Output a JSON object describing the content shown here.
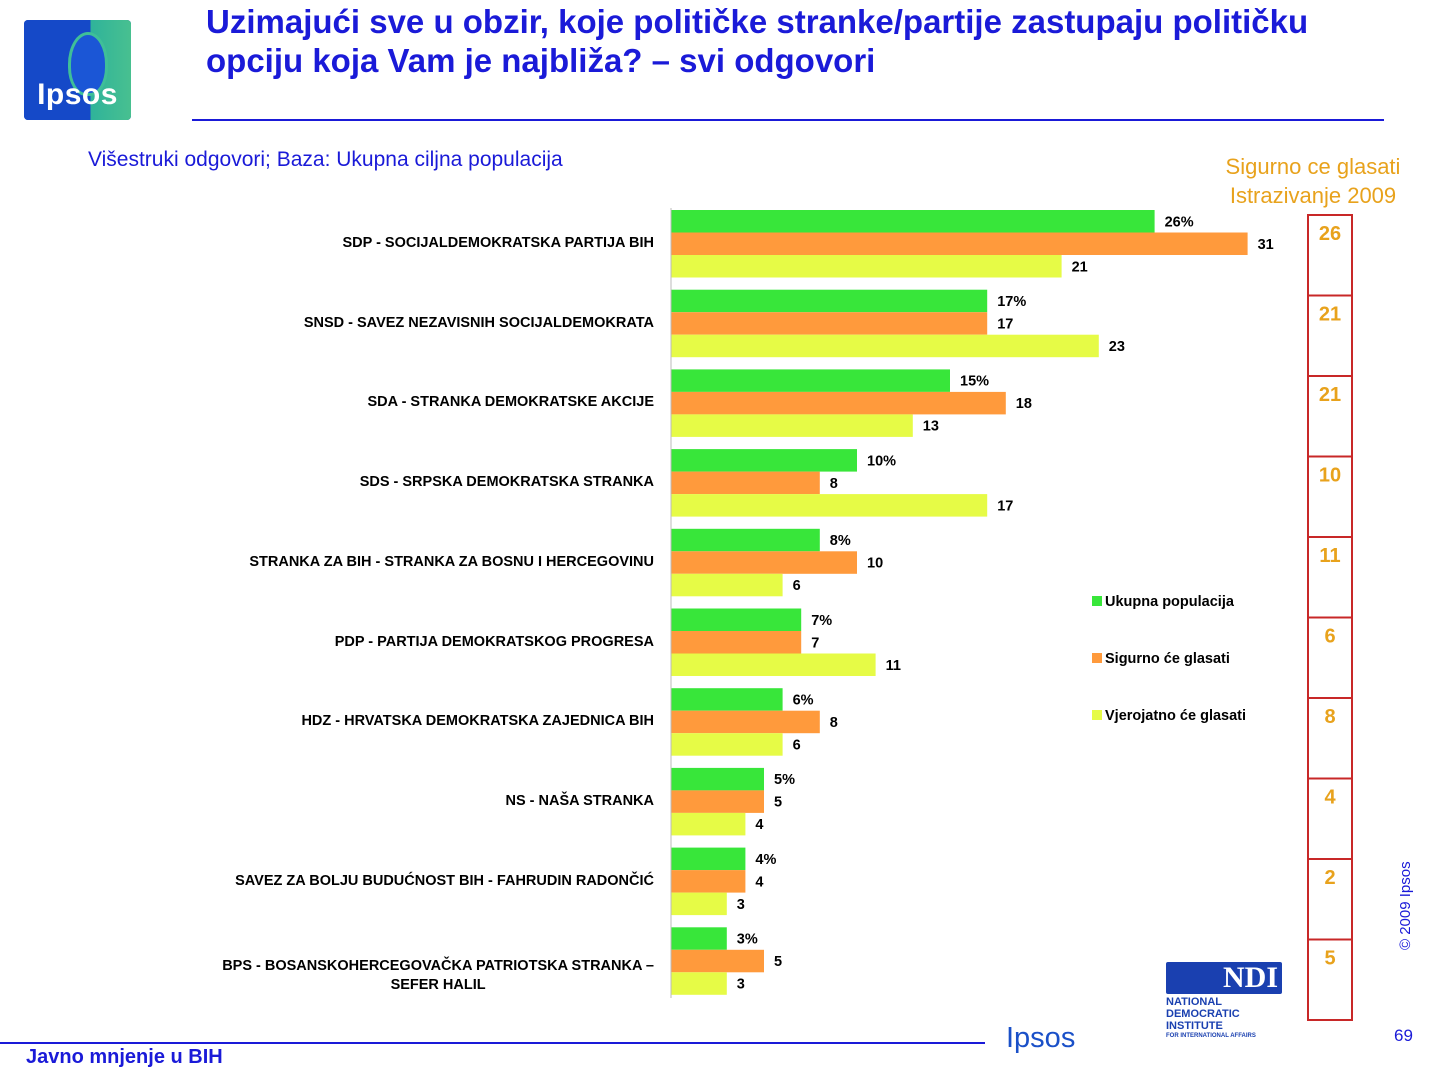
{
  "title": "Uzimajući sve u obzir, koje političke stranke/partije zastupaju političku opciju koja Vam je najbliža? – svi odgovori",
  "subtitle": "Višestruki odgovori; Baza: Ukupna ciljna populacija",
  "logo_text": "Ipsos",
  "poll_header": {
    "line1": "Sigurno ce glasati",
    "line2": "Istrazivanje 2009"
  },
  "footer": {
    "left": "Javno mnjenje u BIH",
    "brand": "Ipsos",
    "page": "69",
    "copyright": "© 2009 Ipsos"
  },
  "ndi": {
    "mark": "NDI",
    "line1": "NATIONAL",
    "line2": "DEMOCRATIC",
    "line3": "INSTITUTE",
    "line4": "FOR INTERNATIONAL AFFAIRS"
  },
  "colors": {
    "green": "#38e63a",
    "orange": "#ff9a3c",
    "yellow": "#e6fb46",
    "title_blue": "#1a1ad8",
    "poll_gold": "#e8a21c",
    "poll_border": "#c82828"
  },
  "chart_data": {
    "type": "bar",
    "orientation": "horizontal",
    "categories": [
      "SDP - SOCIJALDEMOKRATSKA PARTIJA BIH",
      "SNSD - SAVEZ NEZAVISNIH SOCIJALDEMOKRATA",
      "SDA - STRANKA DEMOKRATSKE AKCIJE",
      "SDS - SRPSKA DEMOKRATSKA STRANKA",
      "STRANKA ZA BIH - STRANKA ZA BOSNU I HERCEGOVINU",
      "PDP - PARTIJA DEMOKRATSKOG PROGRESA",
      "HDZ - HRVATSKA DEMOKRATSKA ZAJEDNICA BIH",
      "NS - NAŠA STRANKA",
      "SAVEZ ZA BOLJU BUDUĆNOST BIH - FAHRUDIN RADONČIĆ",
      "BPS - BOSANSKOHERCEGOVAČKA PATRIOTSKA STRANKA – SEFER HALIL"
    ],
    "series": [
      {
        "name": "Ukupna populacija",
        "values": [
          26,
          17,
          15,
          10,
          8,
          7,
          6,
          5,
          4,
          3
        ],
        "labels": [
          "26%",
          "17%",
          "15%",
          "10%",
          "8%",
          "7%",
          "6%",
          "5%",
          "4%",
          "3%"
        ]
      },
      {
        "name": "Sigurno će glasati",
        "values": [
          31,
          17,
          18,
          8,
          10,
          7,
          8,
          5,
          4,
          5
        ],
        "labels": [
          "31",
          "17",
          "18",
          "8",
          "10",
          "7",
          "8",
          "5",
          "4",
          "5"
        ]
      },
      {
        "name": "Vjerojatno će glasati",
        "values": [
          21,
          23,
          13,
          17,
          6,
          11,
          6,
          4,
          3,
          3
        ],
        "labels": [
          "21",
          "23",
          "13",
          "17",
          "6",
          "11",
          "6",
          "4",
          "3",
          "3"
        ]
      }
    ],
    "legend": [
      "Ukupna populacija",
      "Sigurno će glasati",
      "Vjerojatno će glasati"
    ],
    "legend_position": "right",
    "comparison_column": {
      "title": "Sigurno ce glasati Istrazivanje 2009",
      "values": [
        "26",
        "21",
        "21",
        "10",
        "11",
        "6",
        "8",
        "4",
        "2",
        "5"
      ]
    },
    "xlim": [
      0,
      35
    ],
    "grid": false
  }
}
